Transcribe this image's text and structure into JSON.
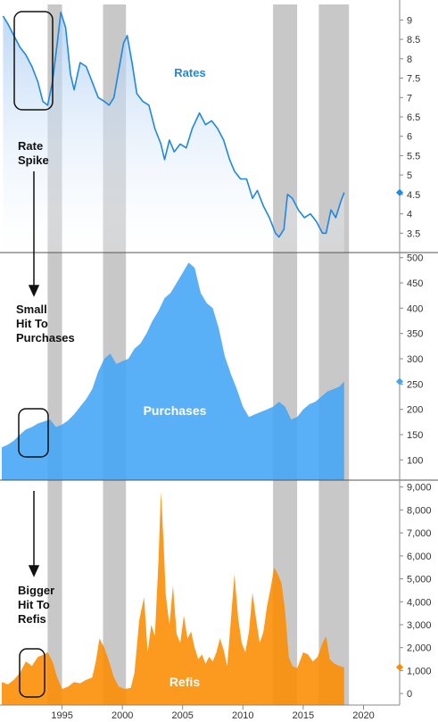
{
  "colors": {
    "rates": "#1e88e5",
    "rates_fill_top": "#cfe3f8",
    "purchases": "#42a5f5",
    "refis": "#fb8c00",
    "recession_band": "#c8c8c8",
    "annotation": "#111111"
  },
  "annotations": {
    "rate_spike": [
      "Rate",
      "Spike"
    ],
    "small_hit": [
      "Small",
      "Hit To",
      "Purchases"
    ],
    "bigger_hit": [
      "Bigger",
      "Hit To",
      "Refis"
    ]
  },
  "chart_data": [
    {
      "type": "line",
      "title": "Rates",
      "x_range": [
        1990,
        2023
      ],
      "ylim": [
        3.0,
        9.4
      ],
      "y_ticks": [
        "3.5",
        "4",
        "4.5",
        "5",
        "5.5",
        "6",
        "6.5",
        "7",
        "7.5",
        "8",
        "8.5",
        "9"
      ],
      "last_value": 4.55,
      "series": [
        {
          "name": "Rates",
          "x": [
            1990.1,
            1990.5,
            1991.0,
            1991.5,
            1992.0,
            1992.5,
            1993.0,
            1993.4,
            1993.8,
            1994.2,
            1994.6,
            1994.9,
            1995.3,
            1995.7,
            1996.0,
            1996.5,
            1997.0,
            1997.5,
            1998.0,
            1998.5,
            1998.9,
            1999.3,
            1999.7,
            2000.1,
            2000.4,
            2000.8,
            2001.2,
            2001.7,
            2002.2,
            2002.7,
            2003.2,
            2003.5,
            2003.9,
            2004.3,
            2004.8,
            2005.3,
            2005.8,
            2006.4,
            2006.9,
            2007.4,
            2007.9,
            2008.4,
            2008.9,
            2009.3,
            2009.8,
            2010.3,
            2010.8,
            2011.2,
            2011.7,
            2012.2,
            2012.7,
            2013.0,
            2013.4,
            2013.7,
            2014.1,
            2014.6,
            2015.1,
            2015.6,
            2016.1,
            2016.6,
            2016.9,
            2017.3,
            2017.7,
            2018.1,
            2018.4
          ],
          "values": [
            9.1,
            8.9,
            8.6,
            8.3,
            8.1,
            7.8,
            7.4,
            6.9,
            6.8,
            7.4,
            8.4,
            9.2,
            8.8,
            7.6,
            7.2,
            7.9,
            7.8,
            7.4,
            7.0,
            6.9,
            6.8,
            7.0,
            7.7,
            8.4,
            8.6,
            7.9,
            7.1,
            6.9,
            6.8,
            6.2,
            5.8,
            5.4,
            5.9,
            5.6,
            5.8,
            5.7,
            6.2,
            6.6,
            6.3,
            6.4,
            6.2,
            5.9,
            5.4,
            5.1,
            4.9,
            4.9,
            4.4,
            4.6,
            4.2,
            3.9,
            3.5,
            3.4,
            3.6,
            4.5,
            4.4,
            4.1,
            3.9,
            4.0,
            3.8,
            3.5,
            3.5,
            4.1,
            3.9,
            4.3,
            4.55
          ]
        }
      ],
      "shaded_periods": [
        [
          1993.8,
          1995.0
        ],
        [
          1998.4,
          2000.3
        ],
        [
          2012.5,
          2014.5
        ],
        [
          2016.3,
          2018.8
        ]
      ]
    },
    {
      "type": "area",
      "title": "Purchases",
      "x_range": [
        1990,
        2023
      ],
      "ylim": [
        60,
        510
      ],
      "y_ticks": [
        "100",
        "150",
        "200",
        "250",
        "300",
        "350",
        "400",
        "450",
        "500"
      ],
      "last_value": 255,
      "series": [
        {
          "name": "Purchases",
          "x": [
            1990.0,
            1990.5,
            1991.0,
            1991.5,
            1992.0,
            1992.5,
            1993.0,
            1993.5,
            1994.0,
            1994.5,
            1995.0,
            1995.5,
            1996.0,
            1996.5,
            1997.0,
            1997.5,
            1998.0,
            1998.5,
            1999.0,
            1999.5,
            2000.0,
            2000.5,
            2001.0,
            2001.5,
            2002.0,
            2002.5,
            2003.0,
            2003.5,
            2004.0,
            2004.5,
            2005.0,
            2005.5,
            2006.0,
            2006.5,
            2007.0,
            2007.5,
            2008.0,
            2008.5,
            2009.0,
            2009.5,
            2010.0,
            2010.5,
            2011.0,
            2011.5,
            2012.0,
            2012.5,
            2013.0,
            2013.5,
            2014.0,
            2014.5,
            2015.0,
            2015.5,
            2016.0,
            2016.5,
            2017.0,
            2017.5,
            2018.0,
            2018.4
          ],
          "values": [
            125,
            130,
            138,
            150,
            160,
            165,
            172,
            176,
            180,
            165,
            170,
            178,
            190,
            205,
            220,
            240,
            275,
            300,
            310,
            290,
            295,
            300,
            320,
            330,
            350,
            375,
            395,
            420,
            430,
            450,
            470,
            490,
            480,
            430,
            410,
            400,
            360,
            305,
            270,
            240,
            205,
            185,
            190,
            195,
            200,
            205,
            215,
            205,
            180,
            185,
            200,
            210,
            215,
            225,
            235,
            240,
            245,
            255
          ]
        }
      ],
      "shaded_periods": [
        [
          1993.8,
          1995.0
        ],
        [
          1998.4,
          2000.3
        ],
        [
          2012.5,
          2014.5
        ],
        [
          2016.3,
          2018.8
        ]
      ]
    },
    {
      "type": "area",
      "title": "Refis",
      "x_range": [
        1990,
        2023
      ],
      "xlabel_ticks": [
        "1995",
        "2000",
        "2005",
        "2010",
        "2015",
        "2020"
      ],
      "ylim": [
        -500,
        9300
      ],
      "y_ticks": [
        "0",
        "1,000",
        "2,000",
        "3,000",
        "4,000",
        "5,000",
        "6,000",
        "7,000",
        "8,000",
        "9,000"
      ],
      "last_value": 1150,
      "series": [
        {
          "name": "Refis",
          "x": [
            1990.0,
            1990.5,
            1991.0,
            1991.5,
            1992.0,
            1992.5,
            1993.0,
            1993.5,
            1993.8,
            1994.2,
            1994.6,
            1995.0,
            1995.5,
            1996.0,
            1996.5,
            1997.0,
            1997.5,
            1997.8,
            1998.1,
            1998.5,
            1998.9,
            1999.3,
            1999.7,
            2000.2,
            2000.7,
            2001.0,
            2001.4,
            2001.8,
            2002.1,
            2002.4,
            2002.7,
            2003.0,
            2003.2,
            2003.4,
            2003.6,
            2003.9,
            2004.2,
            2004.5,
            2004.8,
            2005.1,
            2005.4,
            2005.7,
            2006.0,
            2006.3,
            2006.6,
            2006.9,
            2007.2,
            2007.5,
            2007.8,
            2008.1,
            2008.4,
            2008.7,
            2009.0,
            2009.3,
            2009.6,
            2009.9,
            2010.2,
            2010.5,
            2010.8,
            2011.1,
            2011.4,
            2011.7,
            2012.0,
            2012.3,
            2012.6,
            2012.9,
            2013.2,
            2013.5,
            2013.8,
            2014.1,
            2014.5,
            2015.0,
            2015.4,
            2015.8,
            2016.2,
            2016.6,
            2016.9,
            2017.2,
            2017.6,
            2018.0,
            2018.4
          ],
          "values": [
            500,
            400,
            600,
            900,
            1400,
            1200,
            1600,
            1700,
            1800,
            1400,
            700,
            200,
            300,
            500,
            450,
            600,
            700,
            1400,
            2400,
            2000,
            1400,
            700,
            300,
            200,
            250,
            900,
            3200,
            4200,
            1800,
            3000,
            2500,
            5800,
            8800,
            6800,
            4300,
            3000,
            4700,
            2600,
            2200,
            3400,
            2400,
            2700,
            2000,
            1500,
            1700,
            1300,
            1600,
            1400,
            1800,
            2400,
            1900,
            1200,
            3200,
            5200,
            3300,
            2200,
            1800,
            2700,
            4400,
            3200,
            2200,
            2700,
            3800,
            4600,
            5500,
            5200,
            4800,
            3600,
            1600,
            1200,
            1100,
            1800,
            1700,
            1400,
            1600,
            2200,
            2500,
            1500,
            1300,
            1200,
            1150
          ]
        }
      ],
      "shaded_periods": [
        [
          1993.8,
          1995.0
        ],
        [
          1998.4,
          2000.3
        ],
        [
          2012.5,
          2014.5
        ],
        [
          2016.3,
          2018.8
        ]
      ]
    }
  ]
}
